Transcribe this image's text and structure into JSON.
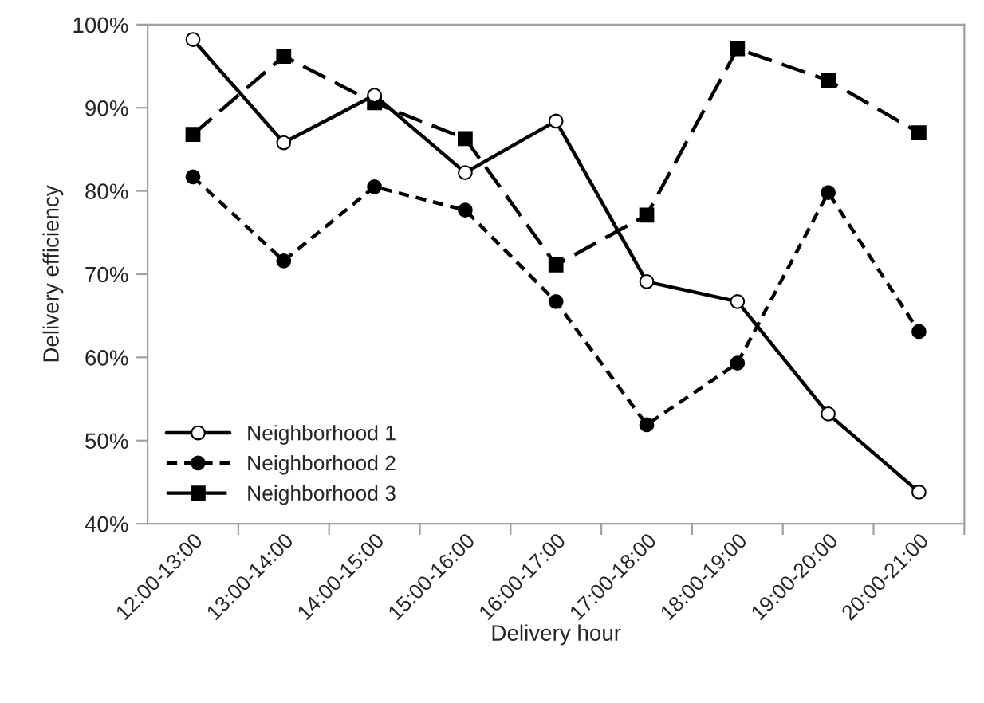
{
  "chart_data": {
    "type": "line",
    "xlabel": "Delivery hour",
    "ylabel": "Delivery efficiency",
    "categories": [
      "12:00-13:00",
      "13:00-14:00",
      "14:00-15:00",
      "15:00-16:00",
      "16:00-17:00",
      "17:00-18:00",
      "18:00-19:00",
      "19:00-20:00",
      "20:00-21:00"
    ],
    "series": [
      {
        "name": "Neighborhood 1",
        "color": "#000000",
        "marker": "circle",
        "line_style": "solid",
        "values": [
          98.2,
          85.8,
          91.5,
          82.2,
          88.4,
          69.1,
          66.7,
          53.2,
          43.8
        ]
      },
      {
        "name": "Neighborhood 2",
        "color": "#000000",
        "marker": "circle",
        "line_style": "dotted",
        "values": [
          81.7,
          71.6,
          80.5,
          77.7,
          66.7,
          51.9,
          59.3,
          79.8,
          63.1
        ]
      },
      {
        "name": "Neighborhood 3",
        "color": "#000000",
        "marker": "square",
        "line_style": "dashed",
        "values": [
          86.8,
          96.2,
          90.6,
          86.3,
          71.1,
          77.1,
          97.1,
          93.3,
          87.0
        ]
      }
    ],
    "ylim": [
      40,
      100
    ],
    "yticks": [
      {
        "value": 40,
        "label": "40%"
      },
      {
        "value": 50,
        "label": "50%"
      },
      {
        "value": 60,
        "label": "60%"
      },
      {
        "value": 70,
        "label": "70%"
      },
      {
        "value": 80,
        "label": "80%"
      },
      {
        "value": 90,
        "label": "90%"
      },
      {
        "value": 100,
        "label": "100%"
      }
    ],
    "grid": false,
    "legend": "bottom left"
  }
}
